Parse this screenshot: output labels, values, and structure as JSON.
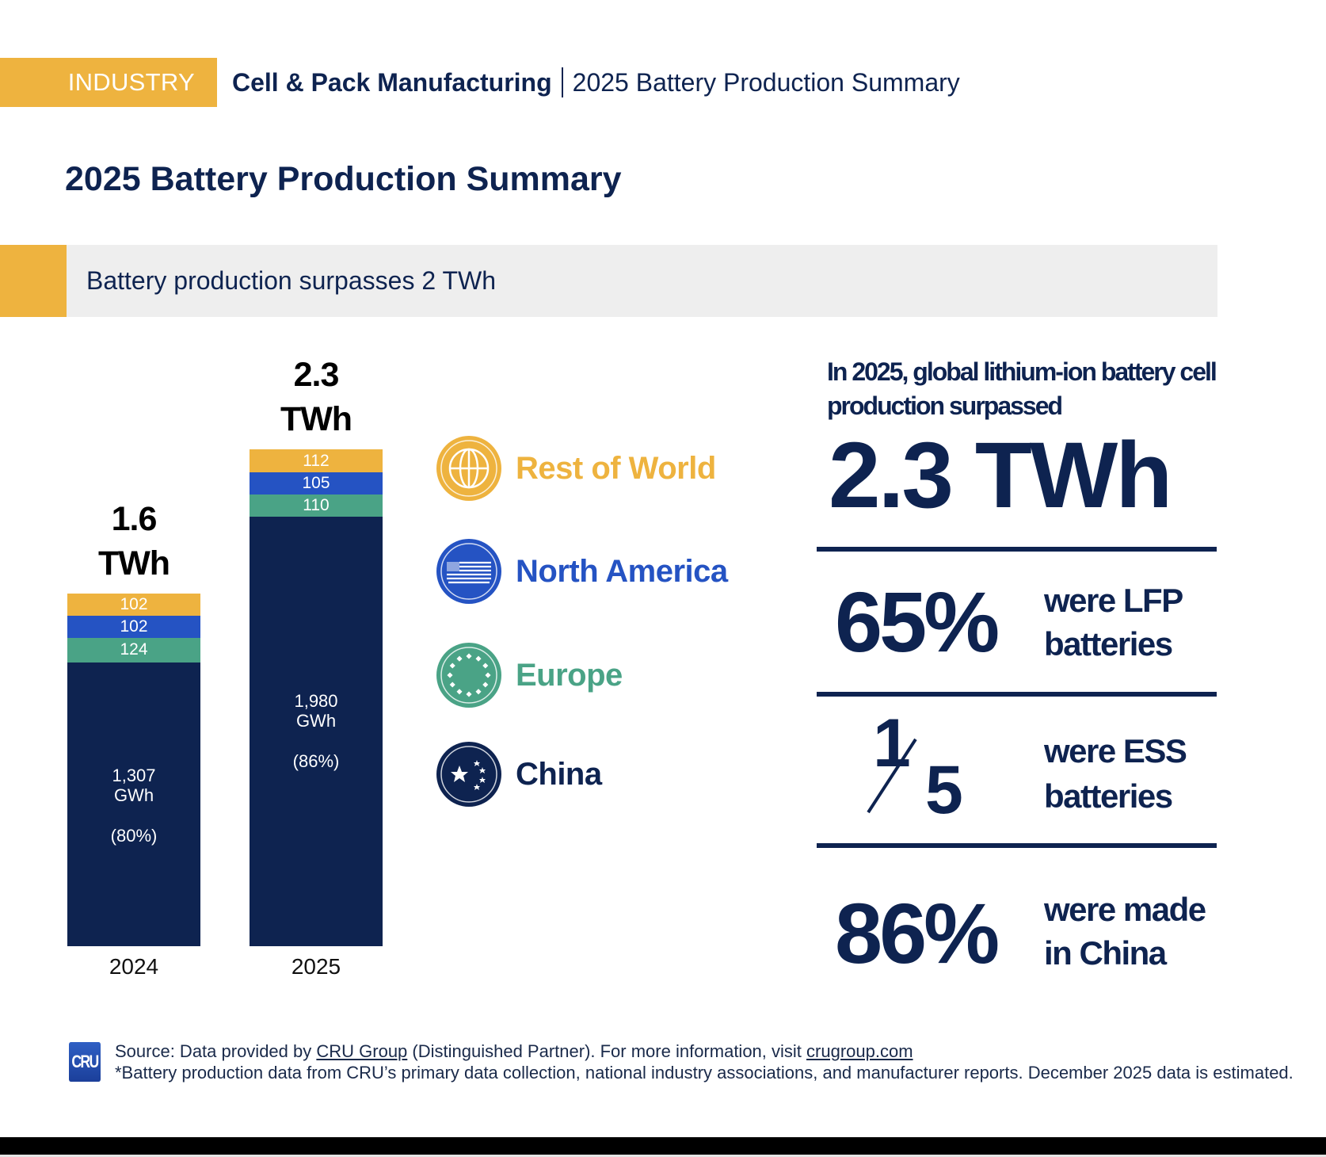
{
  "header": {
    "tag": "INDUSTRY",
    "section": "Cell & Pack Manufacturing",
    "report": "2025 Battery Production Summary"
  },
  "page_title": "2025 Battery Production Summary",
  "subtitle": "Battery production surpasses 2 TWh",
  "colors": {
    "rest_of_world": "#eeb33f",
    "north_america": "#2553c3",
    "europe": "#4aa386",
    "china": "#0e2350"
  },
  "chart_data": {
    "type": "bar",
    "stacked": true,
    "title": "Battery production by region",
    "units": "GWh",
    "categories": [
      "2024",
      "2025"
    ],
    "totals_labels": [
      {
        "value": "1.6",
        "unit": "TWh"
      },
      {
        "value": "2.3",
        "unit": "TWh"
      }
    ],
    "series": [
      {
        "name": "China",
        "values": [
          1307,
          1980
        ],
        "labels": [
          "1,307",
          "1,980"
        ],
        "unit_label": "GWh",
        "share_labels": [
          "(80%)",
          "(86%)"
        ]
      },
      {
        "name": "Europe",
        "values": [
          124,
          110
        ],
        "labels": [
          "124",
          "110"
        ]
      },
      {
        "name": "North America",
        "values": [
          102,
          105
        ],
        "labels": [
          "102",
          "105"
        ]
      },
      {
        "name": "Rest of World",
        "values": [
          102,
          112
        ],
        "labels": [
          "102",
          "112"
        ]
      }
    ],
    "legend": [
      "Rest of World",
      "North America",
      "Europe",
      "China"
    ],
    "legend_placement": "right",
    "grid": false,
    "xlabel": "",
    "ylabel": ""
  },
  "legend": [
    {
      "label": "Rest of World",
      "icon": "globe-icon"
    },
    {
      "label": "North America",
      "icon": "us-flag-icon"
    },
    {
      "label": "Europe",
      "icon": "eu-stars-icon"
    },
    {
      "label": "China",
      "icon": "china-stars-icon"
    }
  ],
  "highlights": {
    "intro": "In 2025, global lithium-ion battery cell production surpassed",
    "total": "2.3 TWh",
    "stats": [
      {
        "value": "65%",
        "line1": "were LFP",
        "line2": "batteries"
      },
      {
        "numerator": "1",
        "denominator": "5",
        "line1": "were ESS",
        "line2": "batteries"
      },
      {
        "value": "86%",
        "line1": "were made",
        "line2": "in China"
      }
    ]
  },
  "footer": {
    "logo": "CRU",
    "source_prefix": "Source: Data provided by ",
    "source_link": "CRU Group",
    "source_middle": " (Distinguished Partner). For more information, visit ",
    "site_link": "crugroup.com",
    "note": "*Battery production data from CRU’s primary data collection, national industry associations, and manufacturer reports. December 2025 data is estimated."
  }
}
